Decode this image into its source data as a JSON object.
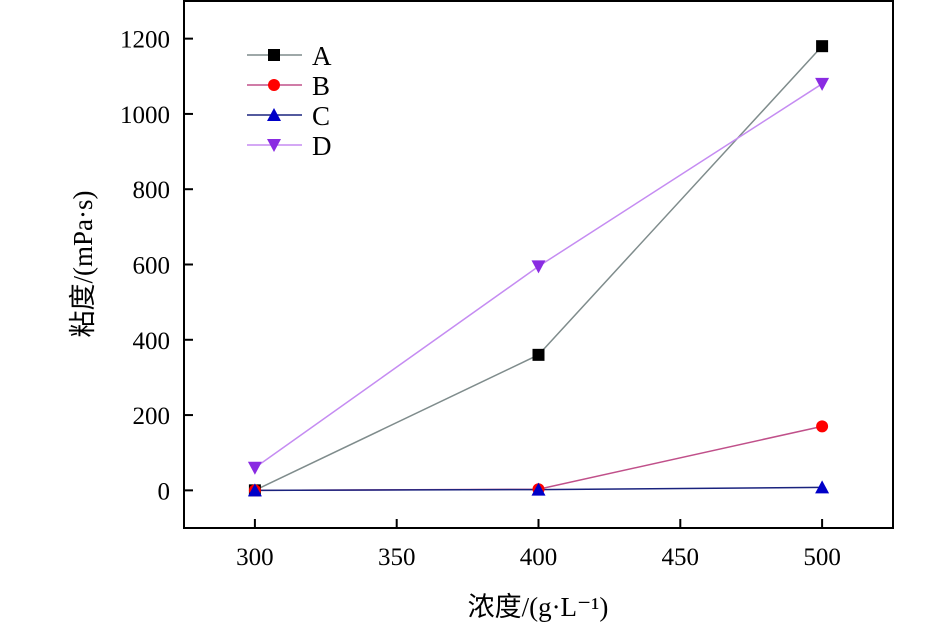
{
  "chart_data": {
    "type": "line",
    "xlabel": "浓度/(g·L⁻¹)",
    "ylabel": "粘度/(mPa·s)",
    "xlim": [
      275,
      525
    ],
    "ylim": [
      -100,
      1300
    ],
    "xticks": [
      300,
      350,
      400,
      450,
      500
    ],
    "yticks": [
      0,
      200,
      400,
      600,
      800,
      1000,
      1200
    ],
    "grid": false,
    "legend_position": "top-left",
    "x": [
      300,
      400,
      500
    ],
    "series": [
      {
        "name": "A",
        "values": [
          0,
          360,
          1180
        ],
        "color": "#000000",
        "line_color": "#7f8c8c",
        "marker": "square"
      },
      {
        "name": "B",
        "values": [
          0,
          3,
          170
        ],
        "color": "#ff0000",
        "line_color": "#c0508a",
        "marker": "circle"
      },
      {
        "name": "C",
        "values": [
          0,
          2,
          8
        ],
        "color": "#0000c8",
        "line_color": "#1a237e",
        "marker": "triangle-up"
      },
      {
        "name": "D",
        "values": [
          60,
          595,
          1080
        ],
        "color": "#8a2be2",
        "line_color": "#c58cf2",
        "marker": "triangle-down"
      }
    ]
  }
}
